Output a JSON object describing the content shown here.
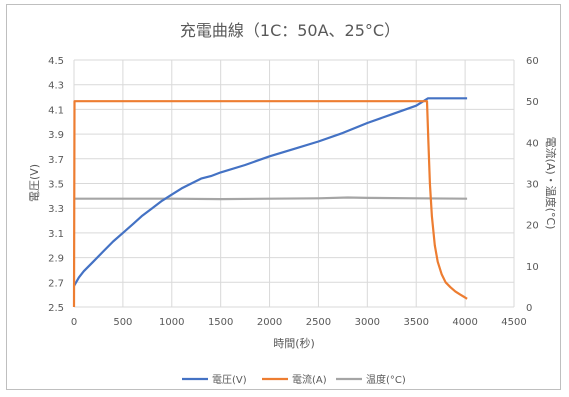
{
  "chart_data": {
    "type": "line",
    "title": "充電曲線（1C：50A、25°C）",
    "xlabel": "時間(秒)",
    "ylabel_left": "電圧(V)",
    "ylabel_right": "電流(A)・温度(°C)",
    "xlim": [
      0,
      4500
    ],
    "ylim_left": [
      2.5,
      4.5
    ],
    "ylim_right": [
      0,
      60
    ],
    "x_ticks": [
      "0",
      "500",
      "1000",
      "1500",
      "2000",
      "2500",
      "3000",
      "3500",
      "4000",
      "4500"
    ],
    "y_left_ticks": [
      "2.5",
      "2.7",
      "2.9",
      "3.1",
      "3.3",
      "3.5",
      "3.7",
      "3.9",
      "4.1",
      "4.3",
      "4.5"
    ],
    "y_right_ticks": [
      "0",
      "10",
      "20",
      "30",
      "40",
      "50",
      "60"
    ],
    "grid": true,
    "legend_position": "bottom",
    "series": [
      {
        "name": "電圧(V)",
        "axis": "left",
        "color": "#4472c4",
        "points": [
          [
            0,
            2.67
          ],
          [
            50,
            2.74
          ],
          [
            100,
            2.79
          ],
          [
            200,
            2.87
          ],
          [
            300,
            2.95
          ],
          [
            400,
            3.03
          ],
          [
            500,
            3.1
          ],
          [
            600,
            3.17
          ],
          [
            700,
            3.24
          ],
          [
            800,
            3.3
          ],
          [
            900,
            3.36
          ],
          [
            1000,
            3.41
          ],
          [
            1100,
            3.46
          ],
          [
            1200,
            3.5
          ],
          [
            1300,
            3.54
          ],
          [
            1400,
            3.56
          ],
          [
            1500,
            3.59
          ],
          [
            1750,
            3.65
          ],
          [
            2000,
            3.72
          ],
          [
            2250,
            3.78
          ],
          [
            2500,
            3.84
          ],
          [
            2750,
            3.91
          ],
          [
            3000,
            3.99
          ],
          [
            3250,
            4.06
          ],
          [
            3500,
            4.13
          ],
          [
            3620,
            4.19
          ],
          [
            4020,
            4.19
          ]
        ]
      },
      {
        "name": "電流(A)",
        "axis": "right",
        "color": "#ed7d31",
        "points": [
          [
            0,
            0
          ],
          [
            5,
            50
          ],
          [
            3610,
            50
          ],
          [
            3625,
            40
          ],
          [
            3640,
            30
          ],
          [
            3660,
            22
          ],
          [
            3690,
            15
          ],
          [
            3720,
            11
          ],
          [
            3760,
            8
          ],
          [
            3800,
            6
          ],
          [
            3850,
            4.8
          ],
          [
            3900,
            3.8
          ],
          [
            3950,
            3
          ],
          [
            4000,
            2.3
          ],
          [
            4020,
            2
          ]
        ]
      },
      {
        "name": "温度(°C)",
        "axis": "right",
        "color": "#a5a5a5",
        "points": [
          [
            0,
            26.3
          ],
          [
            500,
            26.3
          ],
          [
            1000,
            26.3
          ],
          [
            1500,
            26.2
          ],
          [
            2000,
            26.3
          ],
          [
            2500,
            26.4
          ],
          [
            2800,
            26.6
          ],
          [
            3000,
            26.5
          ],
          [
            3500,
            26.4
          ],
          [
            4020,
            26.3
          ]
        ]
      }
    ]
  }
}
